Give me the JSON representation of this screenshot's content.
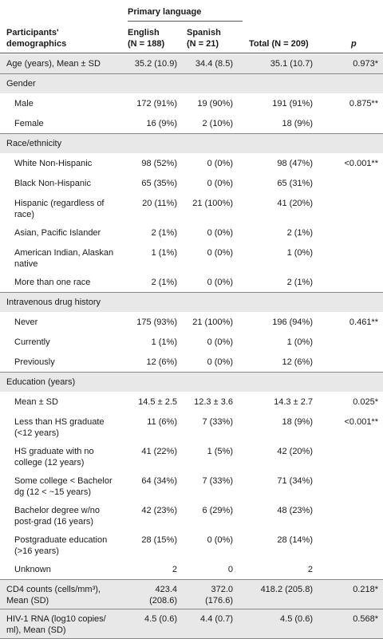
{
  "header": {
    "group_label": "Primary language",
    "col0": [
      "Participants'",
      "demographics"
    ],
    "col1": [
      "English",
      "(N = 188)"
    ],
    "col2": [
      "Spanish",
      "(N = 21)"
    ],
    "col3": "Total (N = 209)",
    "col4": "p"
  },
  "rows": [
    {
      "type": "data",
      "label": [
        "Age (years), Mean ± SD"
      ],
      "en": "35.2 (10.9)",
      "es": "34.4 (8.5)",
      "total": "35.1 (10.7)",
      "p": "0.973*"
    },
    {
      "type": "section",
      "label": [
        "Gender"
      ]
    },
    {
      "type": "sub",
      "label": [
        "Male"
      ],
      "en": "172 (91%)",
      "es": "19 (90%)",
      "total": "191 (91%)",
      "p": "0.875**"
    },
    {
      "type": "sub",
      "label": [
        "Female"
      ],
      "en": "16 (9%)",
      "es": "2 (10%)",
      "total": "18 (9%)",
      "p": ""
    },
    {
      "type": "section",
      "label": [
        "Race/ethnicity"
      ]
    },
    {
      "type": "sub",
      "label": [
        "White Non-Hispanic"
      ],
      "en": "98 (52%)",
      "es": "0 (0%)",
      "total": "98 (47%)",
      "p": "<0.001**"
    },
    {
      "type": "sub",
      "label": [
        "Black Non-Hispanic"
      ],
      "en": "65 (35%)",
      "es": "0 (0%)",
      "total": "65 (31%)",
      "p": ""
    },
    {
      "type": "sub",
      "label": [
        "Hispanic (regardless of",
        "race)"
      ],
      "en": "20 (11%)",
      "es": "21 (100%)",
      "total": "41 (20%)",
      "p": ""
    },
    {
      "type": "sub",
      "label": [
        "Asian, Pacific Islander"
      ],
      "en": "2 (1%)",
      "es": "0 (0%)",
      "total": "2 (1%)",
      "p": ""
    },
    {
      "type": "sub",
      "label": [
        "American Indian, Alaskan",
        "native"
      ],
      "en": "1 (1%)",
      "es": "0 (0%)",
      "total": "1 (0%)",
      "p": ""
    },
    {
      "type": "sub",
      "label": [
        "More than one race"
      ],
      "en": "2 (1%)",
      "es": "0 (0%)",
      "total": "2 (1%)",
      "p": ""
    },
    {
      "type": "section",
      "label": [
        "Intravenous drug history"
      ]
    },
    {
      "type": "sub",
      "label": [
        "Never"
      ],
      "en": "175 (93%)",
      "es": "21 (100%)",
      "total": "196 (94%)",
      "p": "0.461**"
    },
    {
      "type": "sub",
      "label": [
        "Currently"
      ],
      "en": "1 (1%)",
      "es": "0 (0%)",
      "total": "1 (0%)",
      "p": ""
    },
    {
      "type": "sub",
      "label": [
        "Previously"
      ],
      "en": "12 (6%)",
      "es": "0 (0%)",
      "total": "12 (6%)",
      "p": ""
    },
    {
      "type": "section",
      "label": [
        "Education (years)"
      ]
    },
    {
      "type": "sub",
      "label": [
        "Mean ± SD"
      ],
      "en": "14.5 ± 2.5",
      "es": "12.3 ± 3.6",
      "total": "14.3 ± 2.7",
      "p": "0.025*"
    },
    {
      "type": "sub",
      "label": [
        "Less than HS graduate",
        "(<12 years)"
      ],
      "en": "11 (6%)",
      "es": "7 (33%)",
      "total": "18 (9%)",
      "p": "<0.001**"
    },
    {
      "type": "sub",
      "label": [
        "HS graduate with no",
        "college (12 years)"
      ],
      "en": "41 (22%)",
      "es": "1 (5%)",
      "total": "42 (20%)",
      "p": ""
    },
    {
      "type": "sub",
      "label": [
        "Some college < Bachelor",
        "dg (12 < ~15 years)"
      ],
      "en": "64 (34%)",
      "es": "7 (33%)",
      "total": "71 (34%)",
      "p": ""
    },
    {
      "type": "sub",
      "label": [
        "Bachelor degree w/no",
        "post-grad (16 years)"
      ],
      "en": "42 (23%)",
      "es": "6 (29%)",
      "total": "48 (23%)",
      "p": ""
    },
    {
      "type": "sub",
      "label": [
        "Postgraduate education",
        "(>16 years)"
      ],
      "en": "28 (15%)",
      "es": "0 (0%)",
      "total": "28 (14%)",
      "p": ""
    },
    {
      "type": "sub",
      "label": [
        "Unknown"
      ],
      "en": "2",
      "es": "0",
      "total": "2",
      "p": ""
    },
    {
      "type": "data",
      "label": [
        "CD4 counts (cells/mm³),",
        "Mean (SD)"
      ],
      "en": "423.4 (208.6)",
      "es": "372.0 (176.6)",
      "total": "418.2 (205.8)",
      "p": "0.218*"
    },
    {
      "type": "data",
      "label": [
        "HIV-1 RNA (log10 copies/",
        "ml), Mean (SD)"
      ],
      "en": "4.5 (0.6)",
      "es": "4.4 (0.7)",
      "total": "4.5 (0.6)",
      "p": "0.568*"
    }
  ]
}
